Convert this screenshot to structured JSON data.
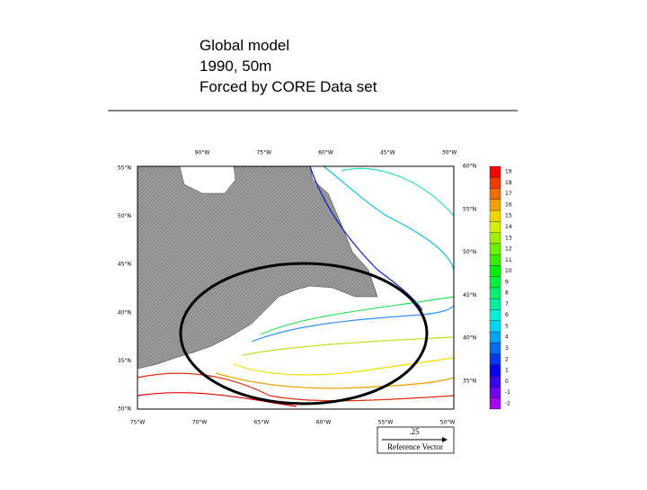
{
  "title_lines": [
    "Global model",
    "1990, 50m",
    "Forced by CORE Data set"
  ],
  "map": {
    "top_labels": [
      "90°W",
      "75°W",
      "60°W",
      "45°W",
      "30°W"
    ],
    "bottom_labels": [
      "75°W",
      "70°W",
      "65°W",
      "60°W",
      "55°W",
      "50°W"
    ],
    "left_labels": [
      "55°N",
      "50°N",
      "45°N",
      "40°N",
      "35°N",
      "30°N"
    ],
    "right_labels": [
      "60°N",
      "55°N",
      "50°N",
      "45°N",
      "40°N",
      "35°N"
    ],
    "colorbar_labels": [
      19,
      18,
      17,
      16,
      15,
      14,
      13,
      12,
      11,
      10,
      9,
      8,
      7,
      6,
      5,
      4,
      3,
      2,
      1,
      0,
      -1,
      -2
    ],
    "reference_vector": {
      "value": ".25",
      "label": "Reference Vector"
    }
  }
}
